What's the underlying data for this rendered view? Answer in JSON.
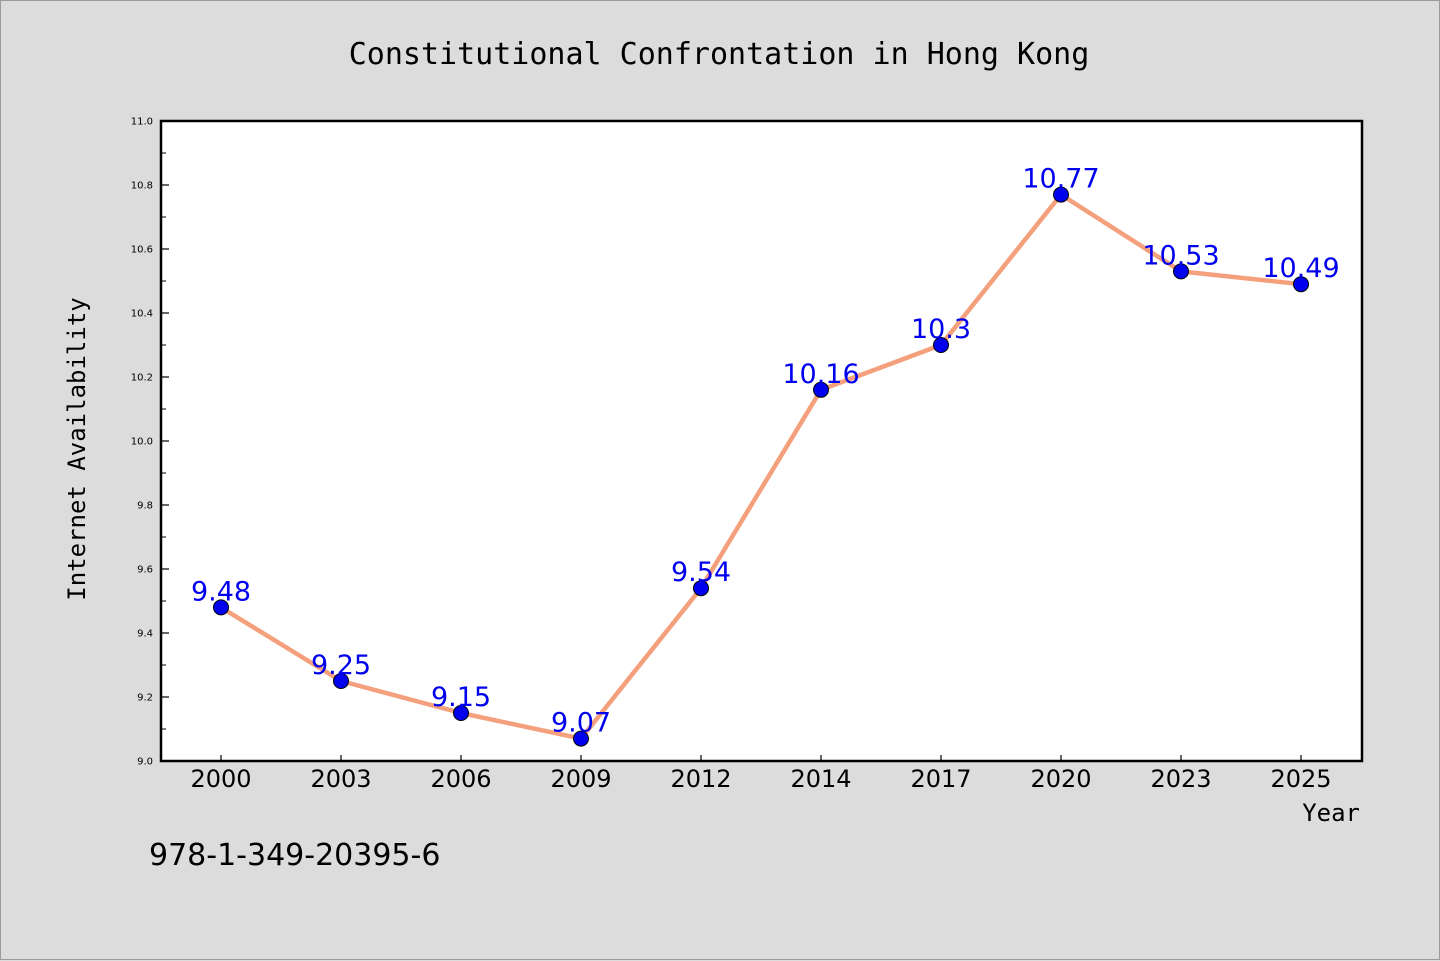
{
  "chart_data": {
    "type": "line",
    "title": "Constitutional Confrontation in Hong Kong",
    "xlabel": "Year",
    "ylabel": "Internet Availability",
    "categories": [
      "2000",
      "2003",
      "2006",
      "2009",
      "2012",
      "2014",
      "2017",
      "2020",
      "2023",
      "2025"
    ],
    "series": [
      {
        "values": [
          9.48,
          9.25,
          9.15,
          9.07,
          9.54,
          10.16,
          10.3,
          10.77,
          10.53,
          10.49
        ]
      }
    ],
    "data_labels": [
      "9.48",
      "9.25",
      "9.15",
      "9.07",
      "9.54",
      "10.16",
      "10.3",
      "10.77",
      "10.53",
      "10.49"
    ],
    "ylim": [
      9.0,
      11.0
    ],
    "yticks": [
      "9.0",
      "9.2",
      "9.4",
      "9.6",
      "9.8",
      "10.0",
      "10.2",
      "10.4",
      "10.6",
      "10.8",
      "11.0"
    ],
    "grid": false,
    "legend": "none",
    "colors": {
      "line": "#f4a07c",
      "marker": "#0000ee",
      "label": "#0000ee",
      "background": "#dcdcdc",
      "plot_background": "#ffffff"
    }
  },
  "footnote": "978-1-349-20395-6"
}
